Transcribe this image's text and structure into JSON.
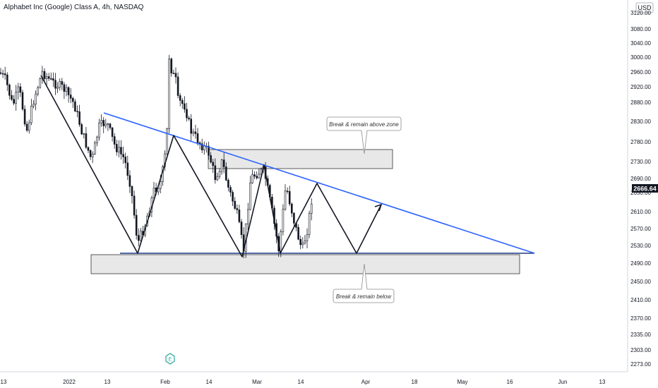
{
  "header": {
    "title": "Alphabet Inc (Google) Class A, 4h, NASDAQ"
  },
  "price_axis": {
    "currency": "USD",
    "ticks": [
      3120,
      3080,
      3040,
      3000,
      2960,
      2920,
      2880,
      2830,
      2780,
      2730,
      2690,
      2650,
      2610,
      2570,
      2530,
      2490,
      2450,
      2410,
      2370,
      2335,
      2303,
      2273
    ],
    "tick_labels": [
      "3120.00",
      "3080.00",
      "3040.00",
      "3000.00",
      "2960.00",
      "2920.00",
      "2880.00",
      "2830.00",
      "2780.00",
      "2730.00",
      "2690.00",
      "2650.00",
      "2610.00",
      "2570.00",
      "2530.00",
      "2490.00",
      "2450.00",
      "2410.00",
      "2370.00",
      "2335.00",
      "2303.00",
      "2273.00"
    ],
    "last_price": 2666.64,
    "last_price_label": "2666.64"
  },
  "time_axis": {
    "labels": [
      "13",
      "2022",
      "13",
      "Feb",
      "14",
      "Mar",
      "14",
      "Apr",
      "18",
      "May",
      "16",
      "Jun",
      "13"
    ]
  },
  "annotations": {
    "above_note": "Break & remain above zone",
    "below_note": "Break & remain below",
    "earnings_marker": "E"
  },
  "colors": {
    "trendline": "#2962ff",
    "support_line": "#1e3a8a",
    "zone_fill": "#e8e8e8",
    "candles": "#131722",
    "last_price_bg": "#131722"
  },
  "chart_data": {
    "type": "candlestick",
    "instrument": "Alphabet Inc (Google) Class A",
    "interval": "4h",
    "exchange": "NASDAQ",
    "currency": "USD",
    "ylim": [
      2262,
      3140
    ],
    "last_price": 2666.64,
    "price_path": [
      {
        "x": "Dec 30",
        "price": 2960
      },
      {
        "x": "Jan 04",
        "price": 2930
      },
      {
        "x": "Jan 12",
        "price": 2780
      },
      {
        "x": "Jan 24",
        "price": 2500
      },
      {
        "x": "Feb 02",
        "price": 3030
      },
      {
        "x": "Feb 03",
        "price": 2880
      },
      {
        "x": "Feb 09",
        "price": 2830
      },
      {
        "x": "Feb 17",
        "price": 2700
      },
      {
        "x": "Feb 24",
        "price": 2500
      },
      {
        "x": "Mar 01",
        "price": 2690
      },
      {
        "x": "Mar 07",
        "price": 2510
      },
      {
        "x": "Mar 15",
        "price": 2600
      },
      {
        "x": "Mar 16",
        "price": 2667
      }
    ],
    "pattern_drawing": [
      {
        "x": "Jan 04",
        "price": 2960
      },
      {
        "x": "Jan 24",
        "price": 2522
      },
      {
        "x": "Feb 07",
        "price": 2792
      },
      {
        "x": "Feb 24",
        "price": 2522
      },
      {
        "x": "Mar 03",
        "price": 2717
      },
      {
        "x": "Mar 08",
        "price": 2522
      },
      {
        "x": "Mar 17",
        "price": 2677
      },
      {
        "x": "Mar 28",
        "price": 2522
      },
      {
        "x": "Apr 07",
        "price": 2627
      }
    ],
    "descending_trendline": {
      "from": {
        "x": "Jan 12",
        "price": 2858
      },
      "to": {
        "x": "Apr 30",
        "price": 2522
      }
    },
    "support_line_price": 2522,
    "supply_zone": {
      "from": "Feb 17",
      "to": "Apr 05",
      "price_low": 2714,
      "price_high": 2760
    },
    "demand_zone": {
      "from": "Jan 09",
      "to": "Apr 28",
      "price_low": 2472,
      "price_high": 2520
    },
    "grid": false
  }
}
